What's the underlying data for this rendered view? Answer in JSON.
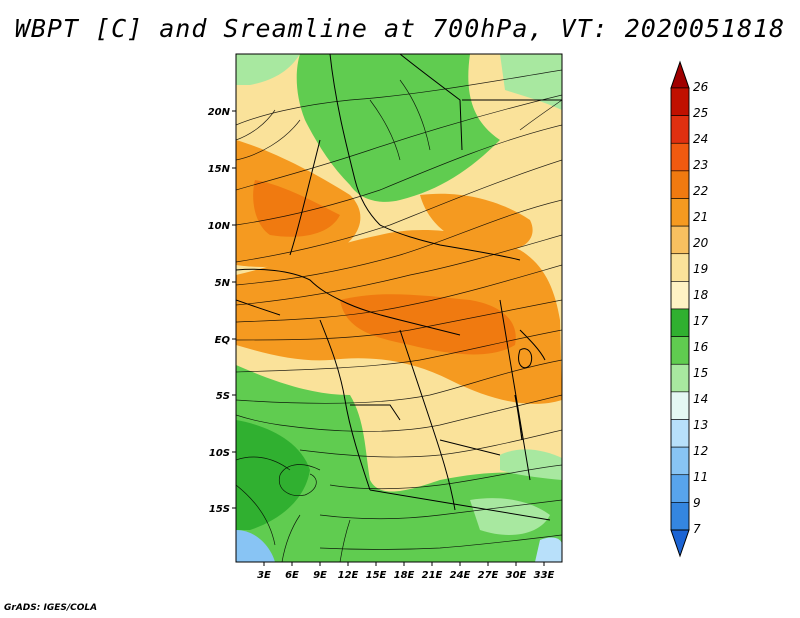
{
  "title": "WBPT [C] and Sreamline at 700hPa, VT: 2020051818",
  "credit": "GrADS: IGES/COLA",
  "axes": {
    "lon_labels": [
      "3E",
      "6E",
      "9E",
      "12E",
      "15E",
      "18E",
      "21E",
      "24E",
      "27E",
      "30E",
      "33E"
    ],
    "lat_labels": [
      "20N",
      "15N",
      "10N",
      "5N",
      "EQ",
      "5S",
      "10S",
      "15S"
    ]
  },
  "colorbar": {
    "labels": [
      "26",
      "25",
      "24",
      "23",
      "22",
      "21",
      "20",
      "19",
      "18",
      "17",
      "16",
      "15",
      "14",
      "13",
      "12",
      "11",
      "9",
      "7"
    ],
    "colors": [
      "#a00000",
      "#c01000",
      "#e03010",
      "#f05a10",
      "#f07a10",
      "#f59a20",
      "#f8c060",
      "#fae29a",
      "#fff2c4",
      "#30b030",
      "#60cc50",
      "#a8e8a0",
      "#e4f8f4",
      "#b8e0fa",
      "#88c4f4",
      "#58a4ec",
      "#3486e0",
      "#1c64d4"
    ]
  }
}
